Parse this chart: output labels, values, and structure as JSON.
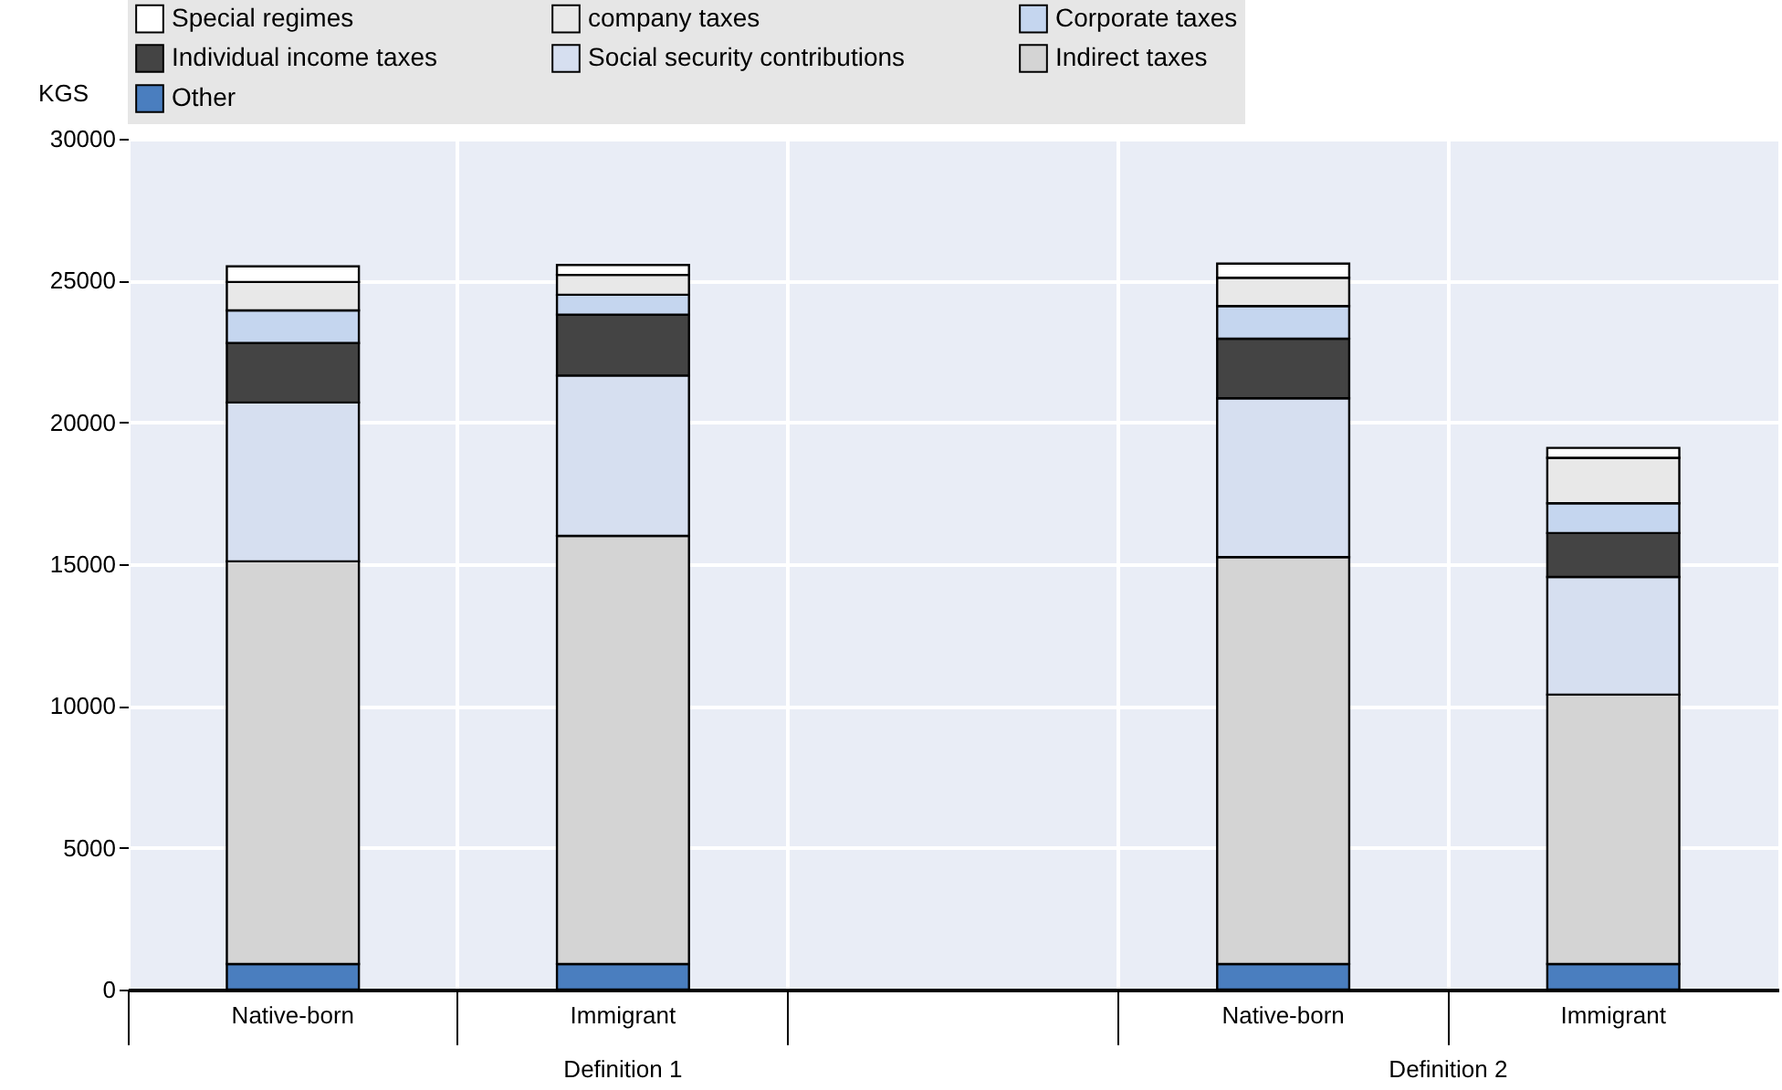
{
  "chart_data": {
    "type": "bar",
    "stacked": true,
    "ylabel": "KGS",
    "categories": [
      "Native-born",
      "Immigrant",
      null,
      "Native-born",
      "Immigrant"
    ],
    "series": [
      {
        "name": "Other",
        "color": "#4a7ebf",
        "values": [
          900,
          900,
          null,
          900,
          900
        ]
      },
      {
        "name": "Indirect taxes",
        "color": "#d4d4d4",
        "values": [
          14200,
          15100,
          null,
          14350,
          9500
        ]
      },
      {
        "name": "Social security contributions",
        "color": "#d6dff0",
        "values": [
          5600,
          5650,
          null,
          5600,
          4150
        ]
      },
      {
        "name": "Individual income taxes",
        "color": "#444444",
        "values": [
          2100,
          2150,
          null,
          2100,
          1550
        ]
      },
      {
        "name": "Corporate taxes",
        "color": "#c5d6ef",
        "values": [
          1150,
          700,
          null,
          1150,
          1050
        ]
      },
      {
        "name": "company taxes",
        "color": "#e8e8e8",
        "values": [
          1000,
          700,
          null,
          1000,
          1600
        ]
      },
      {
        "name": "Special regimes",
        "color": "#ffffff",
        "values": [
          550,
          350,
          null,
          500,
          350
        ]
      }
    ],
    "ylim": [
      0,
      30000
    ],
    "yticks": [
      0,
      5000,
      10000,
      15000,
      20000,
      25000,
      30000
    ],
    "grid": true,
    "legend": "top",
    "annotations": [
      "Definition 1",
      "Definition 2"
    ]
  }
}
